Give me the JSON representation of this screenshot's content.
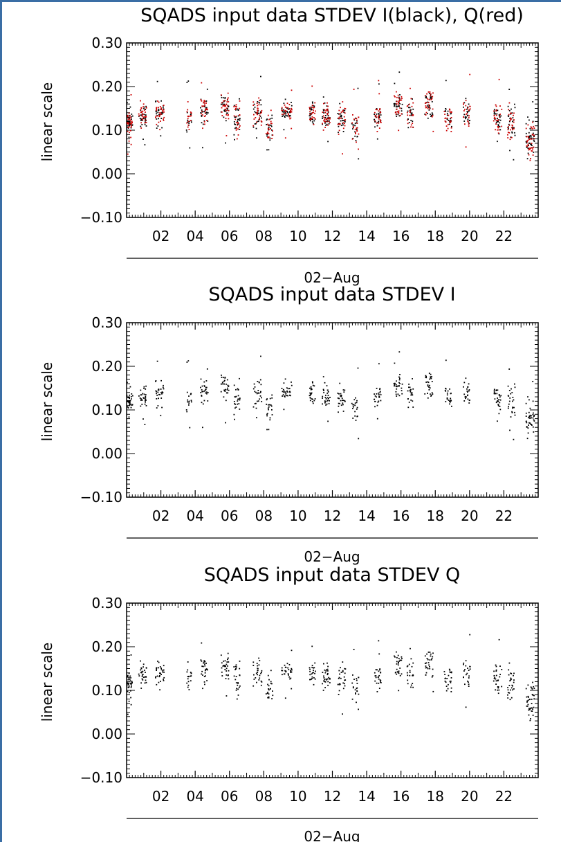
{
  "colors": {
    "black_series": "#000000",
    "red_series": "#cc0000",
    "frame_border": "#3a6ea5"
  },
  "chart_data": [
    {
      "type": "scatter",
      "title": "SQADS input data STDEV I(black), Q(red)",
      "ylabel": "linear scale",
      "xlabel": "02−Aug",
      "xlim": [
        0,
        24
      ],
      "ylim": [
        -0.1,
        0.3
      ],
      "x_tick_labels": [
        "02",
        "04",
        "06",
        "08",
        "10",
        "12",
        "14",
        "16",
        "18",
        "20",
        "22"
      ],
      "y_tick_labels": [
        "−0.10",
        "0.00",
        "0.10",
        "0.20",
        "0.30"
      ],
      "series": [
        {
          "color": "#000000",
          "seed": 7
        },
        {
          "color": "#cc0000",
          "seed": 11
        }
      ]
    },
    {
      "type": "scatter",
      "title": "SQADS input data STDEV I",
      "ylabel": "linear scale",
      "xlabel": "02−Aug",
      "xlim": [
        0,
        24
      ],
      "ylim": [
        -0.1,
        0.3
      ],
      "x_tick_labels": [
        "02",
        "04",
        "06",
        "08",
        "10",
        "12",
        "14",
        "16",
        "18",
        "20",
        "22"
      ],
      "y_tick_labels": [
        "−0.10",
        "0.00",
        "0.10",
        "0.20",
        "0.30"
      ],
      "series": [
        {
          "color": "#000000",
          "seed": 7
        }
      ]
    },
    {
      "type": "scatter",
      "title": "SQADS input data STDEV Q",
      "ylabel": "linear scale",
      "xlabel": "02−Aug",
      "xlim": [
        0,
        24
      ],
      "ylim": [
        -0.1,
        0.3
      ],
      "x_tick_labels": [
        "02",
        "04",
        "06",
        "08",
        "10",
        "12",
        "14",
        "16",
        "18",
        "20",
        "22"
      ],
      "y_tick_labels": [
        "−0.10",
        "0.00",
        "0.10",
        "0.20",
        "0.30"
      ],
      "series": [
        {
          "color": "#000000",
          "seed": 11
        }
      ]
    }
  ],
  "clusters": [
    {
      "hour": 0.15,
      "center": 0.12,
      "spread": 0.025,
      "n": 34,
      "width": 0.35
    },
    {
      "hour": 0.9,
      "center": 0.135,
      "spread": 0.03,
      "n": 30,
      "width": 0.45
    },
    {
      "hour": 1.9,
      "center": 0.14,
      "spread": 0.03,
      "n": 30,
      "width": 0.5
    },
    {
      "hour": 3.6,
      "center": 0.13,
      "spread": 0.03,
      "n": 18,
      "width": 0.3
    },
    {
      "hour": 4.5,
      "center": 0.145,
      "spread": 0.035,
      "n": 28,
      "width": 0.45
    },
    {
      "hour": 5.7,
      "center": 0.16,
      "spread": 0.03,
      "n": 30,
      "width": 0.45
    },
    {
      "hour": 6.4,
      "center": 0.13,
      "spread": 0.04,
      "n": 26,
      "width": 0.35
    },
    {
      "hour": 7.6,
      "center": 0.14,
      "spread": 0.035,
      "n": 28,
      "width": 0.5
    },
    {
      "hour": 8.3,
      "center": 0.11,
      "spread": 0.04,
      "n": 22,
      "width": 0.4
    },
    {
      "hour": 9.3,
      "center": 0.145,
      "spread": 0.025,
      "n": 30,
      "width": 0.6
    },
    {
      "hour": 10.8,
      "center": 0.14,
      "spread": 0.025,
      "n": 24,
      "width": 0.35
    },
    {
      "hour": 11.6,
      "center": 0.13,
      "spread": 0.03,
      "n": 30,
      "width": 0.45
    },
    {
      "hour": 12.5,
      "center": 0.125,
      "spread": 0.03,
      "n": 28,
      "width": 0.45
    },
    {
      "hour": 13.3,
      "center": 0.11,
      "spread": 0.03,
      "n": 22,
      "width": 0.4
    },
    {
      "hour": 14.6,
      "center": 0.13,
      "spread": 0.03,
      "n": 26,
      "width": 0.4
    },
    {
      "hour": 15.8,
      "center": 0.16,
      "spread": 0.035,
      "n": 30,
      "width": 0.5
    },
    {
      "hour": 16.5,
      "center": 0.14,
      "spread": 0.035,
      "n": 22,
      "width": 0.35
    },
    {
      "hour": 17.6,
      "center": 0.16,
      "spread": 0.035,
      "n": 30,
      "width": 0.5
    },
    {
      "hour": 18.7,
      "center": 0.13,
      "spread": 0.025,
      "n": 24,
      "width": 0.45
    },
    {
      "hour": 19.8,
      "center": 0.14,
      "spread": 0.03,
      "n": 24,
      "width": 0.4
    },
    {
      "hour": 21.6,
      "center": 0.13,
      "spread": 0.035,
      "n": 30,
      "width": 0.5
    },
    {
      "hour": 22.4,
      "center": 0.12,
      "spread": 0.04,
      "n": 28,
      "width": 0.45
    },
    {
      "hour": 23.5,
      "center": 0.08,
      "spread": 0.045,
      "n": 40,
      "width": 0.5
    }
  ]
}
